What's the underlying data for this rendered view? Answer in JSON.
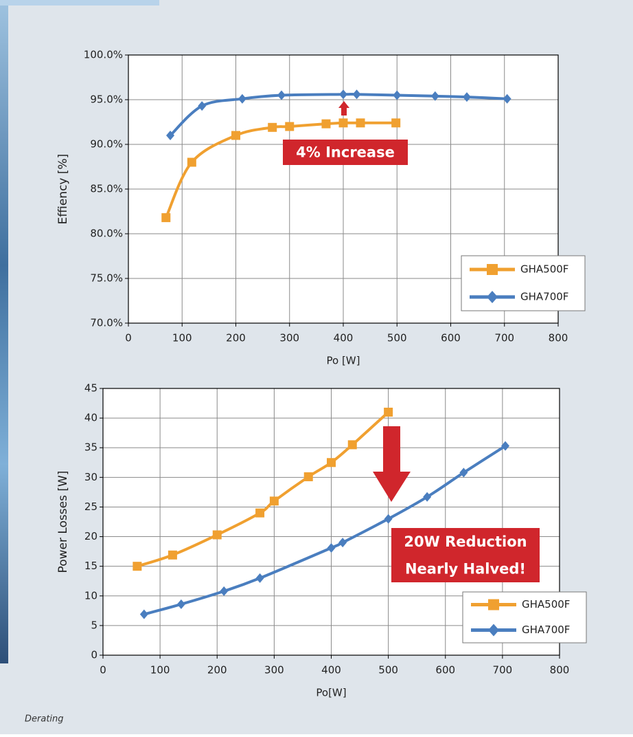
{
  "chart_data": [
    {
      "type": "line",
      "ylabel": "Effiency [%]",
      "xlabel": "Po [W]",
      "xlim": [
        0,
        800
      ],
      "xticks": [
        0,
        100,
        200,
        300,
        400,
        500,
        600,
        700,
        800
      ],
      "ylim": [
        70,
        100
      ],
      "yticks": [
        {
          "value": 70,
          "label": "70.0%"
        },
        {
          "value": 75,
          "label": "75.0%"
        },
        {
          "value": 80,
          "label": "80.0%"
        },
        {
          "value": 85,
          "label": "85.0%"
        },
        {
          "value": 90,
          "label": "90.0%"
        },
        {
          "value": 95,
          "label": "95.0%"
        },
        {
          "value": 100,
          "label": "100.0%"
        }
      ],
      "grid": true,
      "legend": "lower right",
      "smooth": true,
      "annotation": [
        "4% Increase"
      ],
      "series": [
        {
          "name": "GHA500F",
          "color": "#f0a030",
          "marker": "square",
          "x": [
            70,
            118,
            200,
            268,
            300,
            368,
            400,
            432,
            498
          ],
          "values": [
            81.8,
            88.0,
            91.0,
            91.9,
            92.0,
            92.3,
            92.4,
            92.4,
            92.4
          ]
        },
        {
          "name": "GHA700F",
          "color": "#4a7ebf",
          "marker": "diamond",
          "x": [
            78,
            137,
            212,
            285,
            400,
            425,
            500,
            571,
            630,
            705
          ],
          "values": [
            91.0,
            94.3,
            95.1,
            95.5,
            95.6,
            95.6,
            95.5,
            95.4,
            95.3,
            95.1
          ]
        }
      ]
    },
    {
      "type": "line",
      "ylabel": "Power Losses [W]",
      "xlabel": "Po[W]",
      "xlim": [
        0,
        800
      ],
      "xticks": [
        0,
        100,
        200,
        300,
        400,
        500,
        600,
        700,
        800
      ],
      "ylim": [
        0,
        45
      ],
      "yticks": [
        0,
        5,
        10,
        15,
        20,
        25,
        30,
        35,
        40,
        45
      ],
      "grid": true,
      "legend": "lower right",
      "smooth": true,
      "annotation": [
        "20W Reduction",
        "Nearly Halved!"
      ],
      "series": [
        {
          "name": "GHA500F",
          "color": "#f0a030",
          "marker": "square",
          "x": [
            60,
            122,
            200,
            275,
            300,
            360,
            400,
            437,
            500
          ],
          "values": [
            15.0,
            16.9,
            20.3,
            24.0,
            26.0,
            30.1,
            32.5,
            35.5,
            41.0
          ]
        },
        {
          "name": "GHA700F",
          "color": "#4a7ebf",
          "marker": "diamond",
          "x": [
            72,
            137,
            212,
            275,
            400,
            420,
            500,
            568,
            632,
            705
          ],
          "values": [
            6.9,
            8.6,
            10.8,
            13.0,
            18.1,
            19.0,
            23.0,
            26.7,
            30.8,
            35.3
          ]
        }
      ]
    }
  ],
  "caption": "Derating"
}
